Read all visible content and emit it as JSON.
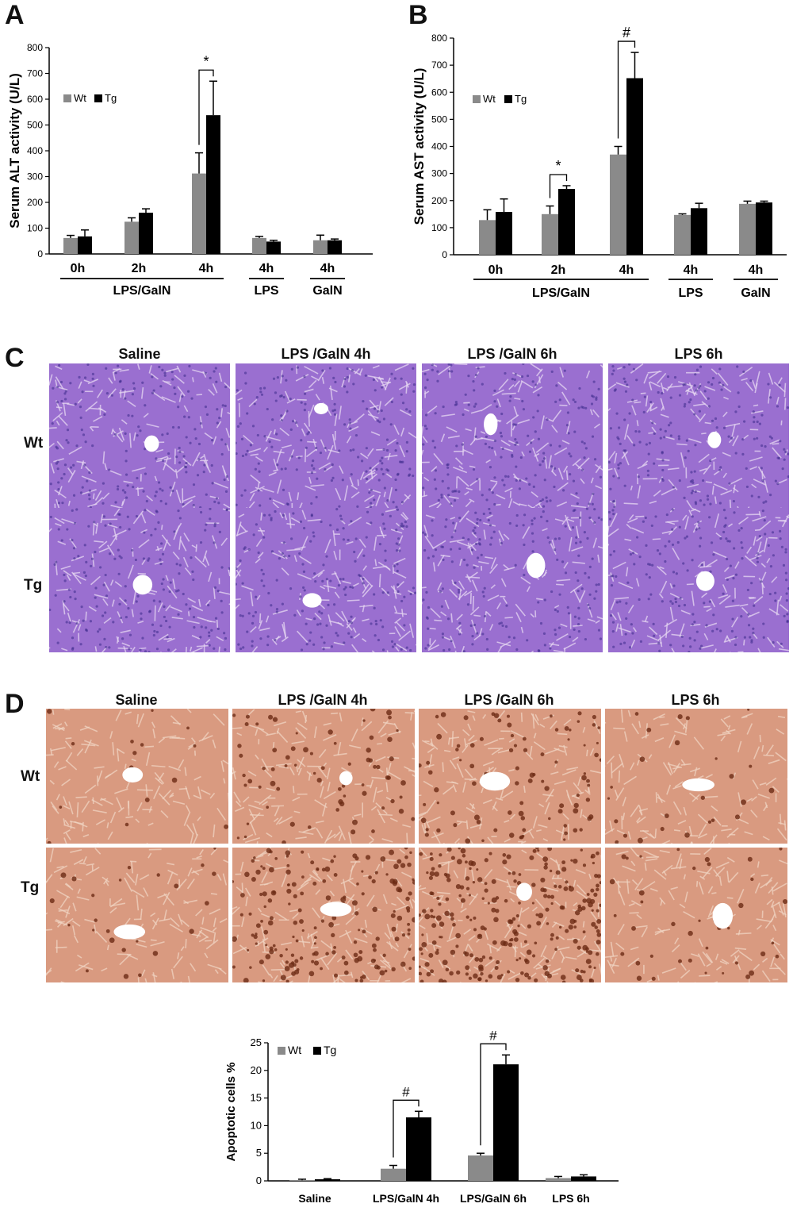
{
  "panels": {
    "a": "A",
    "b": "B",
    "c": "C",
    "d": "D"
  },
  "colors": {
    "wt": "#8a8a8a",
    "tg": "#000000",
    "he_base": "#9a6fd0",
    "he_light": "#e6d7f2",
    "tunel_base": "#d99a80",
    "tunel_light": "#f0d4c2",
    "tunel_dark": "#6b2a14"
  },
  "histology": {
    "columns": [
      "Saline",
      "LPS /GalN 4h",
      "LPS /GalN 6h",
      "LPS 6h"
    ],
    "rows": [
      "Wt",
      "Tg"
    ]
  },
  "chart_data": [
    {
      "id": "A",
      "type": "bar",
      "ylabel": "Serum ALT activity (U/L)",
      "ylim": [
        0,
        800
      ],
      "yticks": [
        0,
        100,
        200,
        300,
        400,
        500,
        600,
        700,
        800
      ],
      "categories": [
        "0h",
        "2h",
        "4h",
        "4h",
        "4h"
      ],
      "groups": [
        {
          "label": "LPS/GalN",
          "from": 0,
          "to": 2
        },
        {
          "label": "LPS",
          "from": 3,
          "to": 3
        },
        {
          "label": "GalN",
          "from": 4,
          "to": 4
        }
      ],
      "legend": [
        "Wt",
        "Tg"
      ],
      "series": [
        {
          "name": "Wt",
          "values": [
            62,
            125,
            312,
            62,
            53
          ],
          "errors": [
            10,
            15,
            80,
            6,
            20
          ]
        },
        {
          "name": "Tg",
          "values": [
            68,
            160,
            538,
            48,
            53
          ],
          "errors": [
            25,
            15,
            132,
            5,
            5
          ]
        }
      ],
      "significance": [
        {
          "category": 2,
          "symbol": "*"
        }
      ]
    },
    {
      "id": "B",
      "type": "bar",
      "ylabel": "Serum AST activity (U/L)",
      "ylim": [
        0,
        800
      ],
      "yticks": [
        0,
        100,
        200,
        300,
        400,
        500,
        600,
        700,
        800
      ],
      "categories": [
        "0h",
        "2h",
        "4h",
        "4h",
        "4h"
      ],
      "groups": [
        {
          "label": "LPS/GalN",
          "from": 0,
          "to": 2
        },
        {
          "label": "LPS",
          "from": 3,
          "to": 3
        },
        {
          "label": "GalN",
          "from": 4,
          "to": 4
        }
      ],
      "legend": [
        "Wt",
        "Tg"
      ],
      "series": [
        {
          "name": "Wt",
          "values": [
            128,
            150,
            370,
            147,
            188
          ],
          "errors": [
            38,
            30,
            30,
            4,
            10
          ]
        },
        {
          "name": "Tg",
          "values": [
            158,
            243,
            652,
            172,
            193
          ],
          "errors": [
            48,
            12,
            95,
            18,
            5
          ]
        }
      ],
      "significance": [
        {
          "category": 1,
          "symbol": "*"
        },
        {
          "category": 2,
          "symbol": "#"
        }
      ]
    },
    {
      "id": "D",
      "type": "bar",
      "ylabel": "Apoptotic cells %",
      "ylim": [
        0,
        25
      ],
      "yticks": [
        0,
        5,
        10,
        15,
        20,
        25
      ],
      "categories": [
        "Saline",
        "LPS/GalN 4h",
        "LPS/GalN 6h",
        "LPS 6h"
      ],
      "legend": [
        "Wt",
        "Tg"
      ],
      "series": [
        {
          "name": "Wt",
          "values": [
            0.1,
            2.2,
            4.6,
            0.5
          ],
          "errors": [
            0.2,
            0.6,
            0.4,
            0.3
          ]
        },
        {
          "name": "Tg",
          "values": [
            0.3,
            11.5,
            21.1,
            0.8
          ],
          "errors": [
            0.1,
            1.1,
            1.7,
            0.3
          ]
        }
      ],
      "significance": [
        {
          "category": 1,
          "symbol": "#"
        },
        {
          "category": 2,
          "symbol": "#"
        }
      ]
    }
  ]
}
